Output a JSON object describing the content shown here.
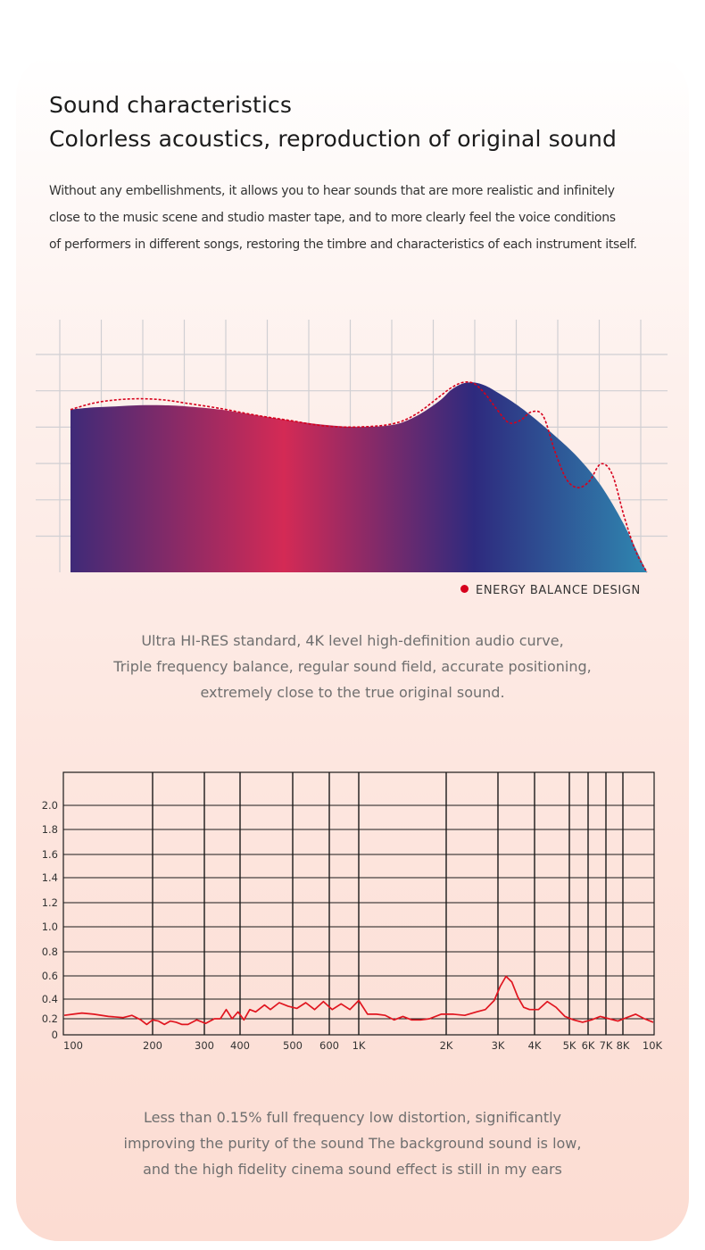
{
  "header": {
    "title_line1": "Sound characteristics",
    "title_line2": "Colorless acoustics, reproduction of original sound"
  },
  "intro": {
    "lines": [
      "Without any embellishments, it allows you to hear sounds that are more realistic and infinitely",
      "close to the music scene and studio master tape, and to more clearly feel the voice conditions",
      "of performers in different songs, restoring the timbre and characteristics of each instrument itself."
    ]
  },
  "energy_chart": {
    "legend_label": "ENERGY BALANCE DESIGN",
    "legend_color": "#d6001c",
    "gradient_colors": [
      "#3f2a78",
      "#d42a55",
      "#2e2a7e",
      "#2f86b0"
    ]
  },
  "middle_text": {
    "lines": [
      "Ultra HI-RES standard, 4K level high-definition audio curve,",
      "Triple frequency balance, regular sound field, accurate positioning,",
      "extremely close to the true original sound."
    ]
  },
  "bottom_text": {
    "lines": [
      "Less than 0.15% full frequency low distortion, significantly",
      "improving the purity of the sound The background sound is low,",
      "and the high fidelity cinema sound effect is still in my ears"
    ]
  },
  "chart_data": [
    {
      "type": "area",
      "title": "",
      "legend": [
        "ENERGY BALANCE DESIGN"
      ],
      "x_ticks": [],
      "y_ticks": [],
      "grid": true,
      "series": [
        {
          "x": [
            0,
            0.04,
            0.08,
            0.12,
            0.16,
            0.2,
            0.26,
            0.32,
            0.38,
            0.44,
            0.5,
            0.56,
            0.6,
            0.64,
            0.66,
            0.68,
            0.7,
            0.72,
            0.74,
            0.77,
            0.8,
            0.84,
            0.88,
            0.92,
            0.96,
            1.0
          ],
          "y": [
            0.75,
            0.76,
            0.765,
            0.77,
            0.77,
            0.765,
            0.75,
            0.725,
            0.7,
            0.68,
            0.67,
            0.68,
            0.72,
            0.79,
            0.84,
            0.87,
            0.875,
            0.86,
            0.83,
            0.78,
            0.72,
            0.63,
            0.53,
            0.4,
            0.22,
            0.0
          ]
        },
        {
          "name": "ENERGY BALANCE DESIGN",
          "x": [
            0,
            0.04,
            0.08,
            0.12,
            0.16,
            0.2,
            0.26,
            0.32,
            0.38,
            0.44,
            0.5,
            0.56,
            0.6,
            0.64,
            0.66,
            0.68,
            0.7,
            0.72,
            0.74,
            0.76,
            0.78,
            0.8,
            0.82,
            0.84,
            0.86,
            0.88,
            0.9,
            0.92,
            0.94,
            0.96,
            0.98,
            1.0
          ],
          "y": [
            0.75,
            0.78,
            0.795,
            0.8,
            0.795,
            0.78,
            0.755,
            0.725,
            0.7,
            0.675,
            0.67,
            0.685,
            0.73,
            0.81,
            0.85,
            0.875,
            0.87,
            0.82,
            0.75,
            0.69,
            0.7,
            0.74,
            0.72,
            0.56,
            0.43,
            0.39,
            0.42,
            0.5,
            0.45,
            0.26,
            0.1,
            0.0
          ]
        }
      ]
    },
    {
      "type": "line",
      "title": "",
      "x_ticks": [
        "100",
        "200",
        "300",
        "400",
        "500",
        "600",
        "1K",
        "2K",
        "3K",
        "4K",
        "5K",
        "6K",
        "7K",
        "8K",
        "10K"
      ],
      "y_ticks": [
        "0",
        "0.2",
        "0.4",
        "0.6",
        "0.8",
        "1.0",
        "1.2",
        "1.4",
        "1.6",
        "1.8",
        "2.0"
      ],
      "y_range": [
        0,
        2.0
      ],
      "x_range": [
        0,
        20
      ],
      "grid": true,
      "series": [
        {
          "name": "",
          "color": "#e0151f",
          "x": [
            0,
            0.3,
            0.6,
            1.0,
            1.5,
            2.0,
            2.3,
            2.6,
            2.8,
            3.0,
            3.2,
            3.4,
            3.6,
            3.8,
            4.0,
            4.2,
            4.5,
            4.8,
            5.1,
            5.3,
            5.5,
            5.7,
            5.9,
            6.1,
            6.3,
            6.5,
            6.8,
            7.0,
            7.3,
            7.6,
            7.9,
            8.2,
            8.5,
            8.8,
            9.1,
            9.4,
            9.7,
            10.0,
            10.3,
            10.6,
            10.9,
            11.2,
            11.5,
            11.8,
            12.1,
            12.4,
            12.8,
            13.2,
            13.6,
            14.0,
            14.3,
            14.6,
            14.8,
            15.0,
            15.2,
            15.4,
            15.6,
            15.8,
            16.1,
            16.4,
            16.7,
            17.0,
            17.3,
            17.6,
            17.9,
            18.2,
            18.5,
            18.8,
            19.1,
            19.4,
            19.7,
            20.0
          ],
          "y": [
            0.17,
            0.18,
            0.19,
            0.18,
            0.16,
            0.15,
            0.17,
            0.13,
            0.09,
            0.13,
            0.12,
            0.09,
            0.12,
            0.11,
            0.09,
            0.09,
            0.13,
            0.1,
            0.14,
            0.14,
            0.22,
            0.14,
            0.2,
            0.13,
            0.22,
            0.2,
            0.26,
            0.22,
            0.28,
            0.25,
            0.23,
            0.28,
            0.22,
            0.29,
            0.22,
            0.27,
            0.22,
            0.3,
            0.18,
            0.18,
            0.17,
            0.13,
            0.16,
            0.13,
            0.13,
            0.14,
            0.18,
            0.18,
            0.17,
            0.2,
            0.22,
            0.3,
            0.42,
            0.51,
            0.46,
            0.33,
            0.24,
            0.22,
            0.22,
            0.29,
            0.24,
            0.16,
            0.13,
            0.11,
            0.13,
            0.16,
            0.14,
            0.12,
            0.15,
            0.18,
            0.14,
            0.11
          ]
        }
      ]
    }
  ]
}
